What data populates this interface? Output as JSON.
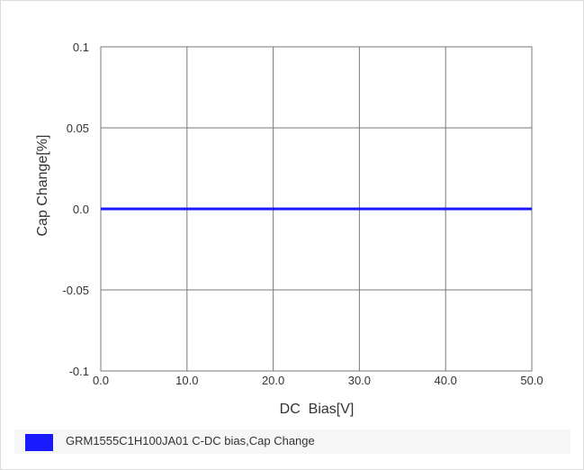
{
  "chart_data": {
    "type": "line",
    "title": "",
    "xlabel": "DC  Bias[V]",
    "ylabel": "Cap Change[%]",
    "xlim": [
      0,
      50
    ],
    "ylim": [
      -0.1,
      0.1
    ],
    "x_ticks": [
      0,
      10,
      20,
      30,
      40,
      50
    ],
    "x_tick_labels": [
      "0.0",
      "10.0",
      "20.0",
      "30.0",
      "40.0",
      "50.0"
    ],
    "y_ticks": [
      0.1,
      0.05,
      0.0,
      -0.05,
      -0.1
    ],
    "y_tick_labels": [
      "0.1",
      "0.05",
      "0.0",
      "-0.05",
      "-0.1"
    ],
    "grid": true,
    "legend_placement": "bottom",
    "series": [
      {
        "name": "GRM1555C1H100JA01 C-DC bias,Cap Change",
        "color": "#1a1aff",
        "x": [
          0,
          10,
          20,
          30,
          40,
          50
        ],
        "y": [
          0,
          0,
          0,
          0,
          0,
          0
        ]
      }
    ]
  }
}
